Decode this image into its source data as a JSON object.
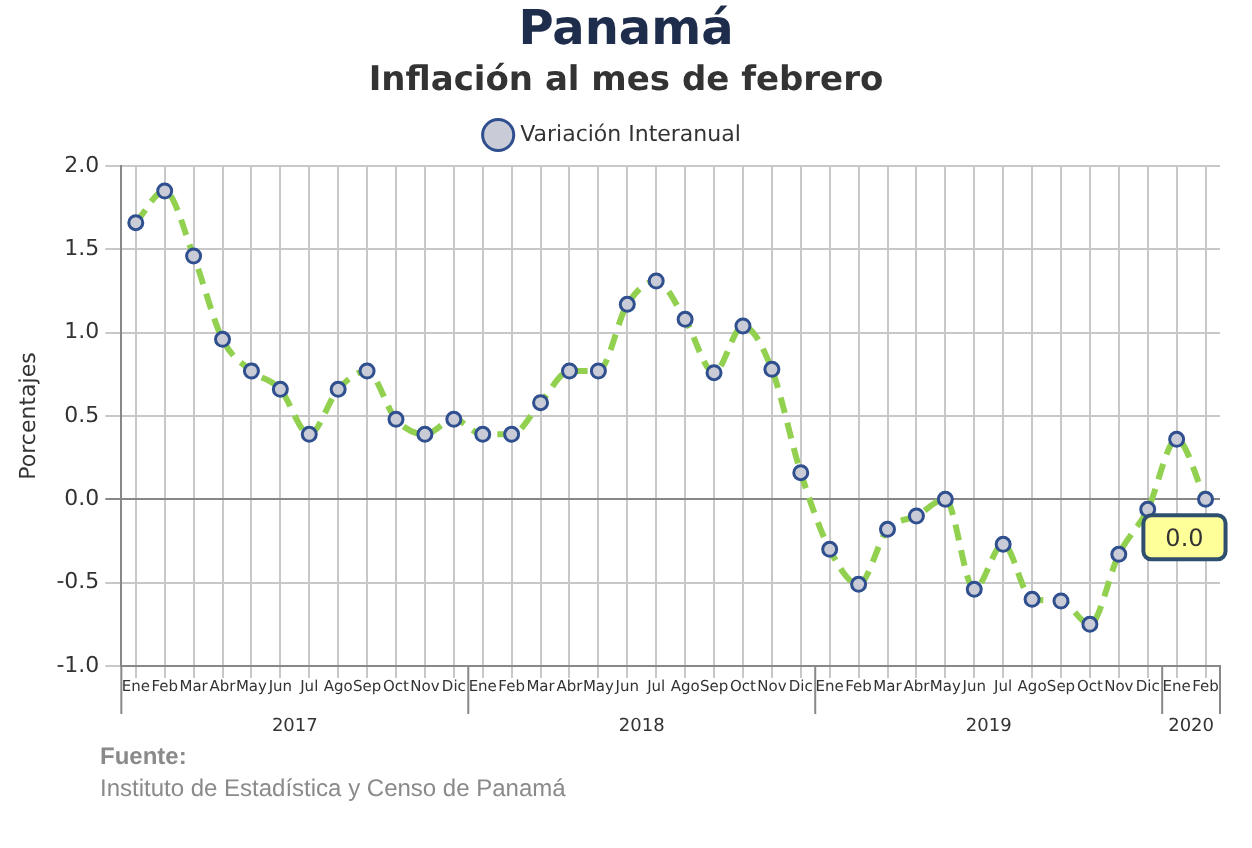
{
  "chart_data": {
    "type": "line",
    "title": "Panamá",
    "subtitle": "Inflación al mes de febrero",
    "ylabel": "Porcentajes",
    "categories": [
      "Ene",
      "Feb",
      "Mar",
      "Abr",
      "May",
      "Jun",
      "Jul",
      "Ago",
      "Sep",
      "Oct",
      "Nov",
      "Dic",
      "Ene",
      "Feb",
      "Mar",
      "Abr",
      "May",
      "Jun",
      "Jul",
      "Ago",
      "Sep",
      "Oct",
      "Nov",
      "Dic",
      "Ene",
      "Feb",
      "Mar",
      "Abr",
      "May",
      "Jun",
      "Jul",
      "Ago",
      "Sep",
      "Oct",
      "Nov",
      "Dic",
      "Ene",
      "Feb"
    ],
    "series": [
      {
        "name": "Variación Interanual",
        "color": "#92d050",
        "values": [
          1.66,
          1.85,
          1.46,
          0.96,
          0.77,
          0.66,
          0.39,
          0.66,
          0.77,
          0.48,
          0.39,
          0.48,
          0.39,
          0.39,
          0.58,
          0.77,
          0.77,
          1.17,
          1.31,
          1.08,
          0.76,
          1.04,
          0.78,
          0.16,
          -0.3,
          -0.51,
          -0.18,
          -0.1,
          0.0,
          -0.54,
          -0.27,
          -0.6,
          -0.61,
          -0.75,
          -0.33,
          -0.06,
          0.36,
          0.0
        ],
        "value_labels": [
          null,
          null,
          null,
          null,
          null,
          null,
          null,
          null,
          null,
          null,
          null,
          null,
          null,
          null,
          null,
          null,
          null,
          null,
          null,
          null,
          null,
          null,
          null,
          null,
          null,
          null,
          null,
          null,
          null,
          null,
          null,
          null,
          null,
          null,
          null,
          null,
          null,
          "0.0"
        ]
      }
    ],
    "ylim": [
      -1,
      2
    ],
    "yticks": [
      {
        "value": -1,
        "label": "-1.0"
      },
      {
        "value": -0.5,
        "label": "-0.5"
      },
      {
        "value": 0,
        "label": "0.0"
      },
      {
        "value": 0.5,
        "label": "0.5"
      },
      {
        "value": 1,
        "label": "1.0"
      },
      {
        "value": 1.5,
        "label": "1.5"
      },
      {
        "value": 2,
        "label": "2.0"
      }
    ],
    "grid": true,
    "legend": "top",
    "marker": "circle",
    "line_style": "dashed",
    "annotations": [
      "2017",
      "2018",
      "2019",
      "2020",
      "Fuente:",
      "Instituto de Estadística y Censo de Panamá"
    ]
  }
}
